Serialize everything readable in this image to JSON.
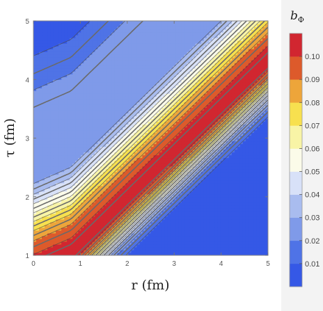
{
  "chart_data": {
    "type": "heatmap",
    "subtype": "contour",
    "title": "",
    "xlabel": "r (fm)",
    "ylabel": "τ (fm)",
    "xlim": [
      0,
      5
    ],
    "ylim": [
      1,
      5
    ],
    "x_ticks": [
      0,
      1,
      2,
      3,
      4,
      5
    ],
    "y_ticks": [
      1,
      2,
      3,
      4,
      5
    ],
    "legend": {
      "title": "b",
      "title_subscript": "Φ",
      "placement": "right",
      "min": 0,
      "max": 0.11,
      "ticks": [
        "0.01",
        "0.02",
        "0.03",
        "0.04",
        "0.05",
        "0.06",
        "0.07",
        "0.08",
        "0.09",
        "0.10"
      ],
      "bands": [
        {
          "from": 0.0,
          "to": 0.01,
          "color": "#3558e6"
        },
        {
          "from": 0.01,
          "to": 0.02,
          "color": "#4f73e6"
        },
        {
          "from": 0.02,
          "to": 0.03,
          "color": "#7f9ae9"
        },
        {
          "from": 0.03,
          "to": 0.04,
          "color": "#a9bcef"
        },
        {
          "from": 0.04,
          "to": 0.05,
          "color": "#d8e1f8"
        },
        {
          "from": 0.05,
          "to": 0.06,
          "color": "#fbfbe9"
        },
        {
          "from": 0.06,
          "to": 0.07,
          "color": "#f8f4a6"
        },
        {
          "from": 0.07,
          "to": 0.08,
          "color": "#f7e04f"
        },
        {
          "from": 0.08,
          "to": 0.09,
          "color": "#eda53a"
        },
        {
          "from": 0.09,
          "to": 0.1,
          "color": "#dd5a2b"
        },
        {
          "from": 0.1,
          "to": 0.11,
          "color": "#d12630"
        }
      ]
    },
    "field_model": {
      "ridge": "tau = 1.0 + 0.78*(r - 0.8) for r >= 0.8",
      "peak": 0.105,
      "lower_width": 0.42,
      "upper_width": 0.95
    },
    "contour_levels_solid": [
      0.01,
      0.02,
      0.03,
      0.04,
      0.05,
      0.06,
      0.07,
      0.08,
      0.09,
      0.1
    ],
    "contour_levels_dashed": [
      0.015,
      0.025,
      0.035,
      0.045,
      0.055,
      0.065,
      0.075,
      0.085,
      0.095,
      0.103
    ]
  }
}
